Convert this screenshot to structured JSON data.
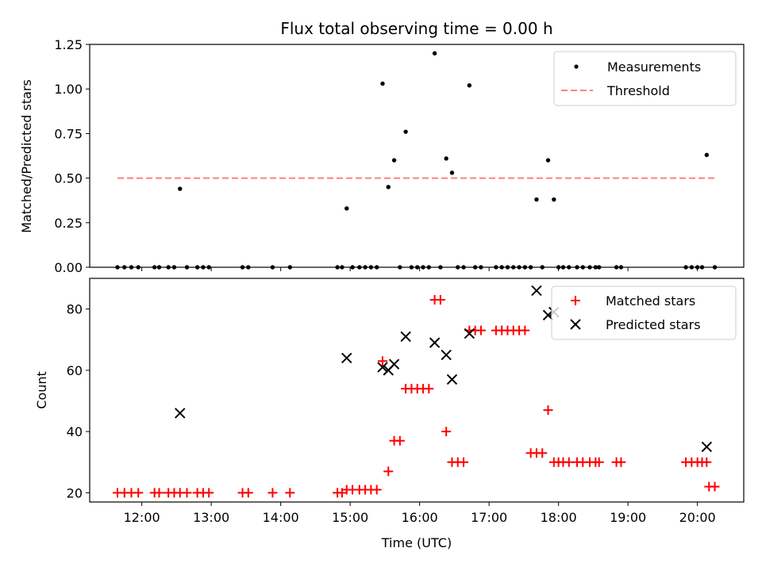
{
  "chart_data": [
    {
      "type": "scatter",
      "title": "Flux total observing time = 0.00 h",
      "xlabel": "",
      "ylabel": "Matched/Predicted stars",
      "xlim": [
        "11:15",
        "20:40"
      ],
      "ylim": [
        0,
        1.25
      ],
      "yticks": [
        0.0,
        0.25,
        0.5,
        0.75,
        1.0,
        1.25
      ],
      "ytick_labels": [
        "0.00",
        "0.25",
        "0.50",
        "0.75",
        "1.00",
        "1.25"
      ],
      "grid": false,
      "legend_position": "top-right",
      "series": [
        {
          "name": "Measurements",
          "marker": "dot",
          "color": "#000000",
          "points": [
            [
              "11:39",
              0
            ],
            [
              "11:45",
              0
            ],
            [
              "11:51",
              0
            ],
            [
              "11:57",
              0
            ],
            [
              "12:11",
              0
            ],
            [
              "12:15",
              0
            ],
            [
              "12:23",
              0
            ],
            [
              "12:28",
              0
            ],
            [
              "12:33",
              0.44
            ],
            [
              "12:39",
              0
            ],
            [
              "12:48",
              0
            ],
            [
              "12:53",
              0
            ],
            [
              "12:58",
              0
            ],
            [
              "13:27",
              0
            ],
            [
              "13:32",
              0
            ],
            [
              "13:53",
              0
            ],
            [
              "14:08",
              0
            ],
            [
              "14:49",
              0
            ],
            [
              "14:53",
              0
            ],
            [
              "14:57",
              0.33
            ],
            [
              "15:02",
              0
            ],
            [
              "15:08",
              0
            ],
            [
              "15:13",
              0
            ],
            [
              "15:18",
              0
            ],
            [
              "15:23",
              0
            ],
            [
              "15:28",
              1.03
            ],
            [
              "15:33",
              0.45
            ],
            [
              "15:38",
              0.6
            ],
            [
              "15:43",
              0
            ],
            [
              "15:48",
              0.76
            ],
            [
              "15:53",
              0
            ],
            [
              "15:58",
              0
            ],
            [
              "16:03",
              0
            ],
            [
              "16:08",
              0
            ],
            [
              "16:13",
              1.2
            ],
            [
              "16:18",
              0
            ],
            [
              "16:23",
              0.61
            ],
            [
              "16:28",
              0.53
            ],
            [
              "16:33",
              0
            ],
            [
              "16:38",
              0
            ],
            [
              "16:43",
              1.02
            ],
            [
              "16:48",
              0
            ],
            [
              "16:53",
              0
            ],
            [
              "17:06",
              0
            ],
            [
              "17:11",
              0
            ],
            [
              "17:16",
              0
            ],
            [
              "17:21",
              0
            ],
            [
              "17:26",
              0
            ],
            [
              "17:31",
              0
            ],
            [
              "17:36",
              0
            ],
            [
              "17:41",
              0.38
            ],
            [
              "17:46",
              0
            ],
            [
              "17:51",
              0.6
            ],
            [
              "17:56",
              0.38
            ],
            [
              "18:00",
              0
            ],
            [
              "18:04",
              0
            ],
            [
              "18:09",
              0
            ],
            [
              "18:16",
              0
            ],
            [
              "18:21",
              0
            ],
            [
              "18:27",
              0
            ],
            [
              "18:32",
              0
            ],
            [
              "18:35",
              0
            ],
            [
              "18:50",
              0
            ],
            [
              "18:54",
              0
            ],
            [
              "19:50",
              0
            ],
            [
              "19:55",
              0
            ],
            [
              "20:00",
              0
            ],
            [
              "20:04",
              0
            ],
            [
              "20:08",
              0.63
            ],
            [
              "20:15",
              0
            ]
          ]
        },
        {
          "name": "Threshold",
          "marker": "dashed-line",
          "color": "#ff8080",
          "points": [
            [
              "11:39",
              0.5
            ],
            [
              "20:15",
              0.5
            ]
          ]
        }
      ]
    },
    {
      "type": "scatter",
      "title": "",
      "xlabel": "Time (UTC)",
      "ylabel": "Count",
      "xlim": [
        "11:15",
        "20:40"
      ],
      "ylim": [
        17,
        90
      ],
      "yticks": [
        20,
        40,
        60,
        80
      ],
      "ytick_labels": [
        "20",
        "40",
        "60",
        "80"
      ],
      "xticks": [
        "12:00",
        "13:00",
        "14:00",
        "15:00",
        "16:00",
        "17:00",
        "18:00",
        "19:00",
        "20:00"
      ],
      "xtick_labels": [
        "12:00",
        "13:00",
        "14:00",
        "15:00",
        "16:00",
        "17:00",
        "18:00",
        "19:00",
        "20:00"
      ],
      "grid": false,
      "legend_position": "top-right",
      "series": [
        {
          "name": "Matched stars",
          "marker": "plus",
          "color": "#ff0000",
          "points": [
            [
              "11:39",
              20
            ],
            [
              "11:45",
              20
            ],
            [
              "11:51",
              20
            ],
            [
              "11:57",
              20
            ],
            [
              "12:11",
              20
            ],
            [
              "12:15",
              20
            ],
            [
              "12:23",
              20
            ],
            [
              "12:28",
              20
            ],
            [
              "12:33",
              20
            ],
            [
              "12:39",
              20
            ],
            [
              "12:48",
              20
            ],
            [
              "12:53",
              20
            ],
            [
              "12:58",
              20
            ],
            [
              "13:27",
              20
            ],
            [
              "13:32",
              20
            ],
            [
              "13:53",
              20
            ],
            [
              "14:08",
              20
            ],
            [
              "14:49",
              20
            ],
            [
              "14:53",
              20
            ],
            [
              "14:57",
              21
            ],
            [
              "15:02",
              21
            ],
            [
              "15:08",
              21
            ],
            [
              "15:13",
              21
            ],
            [
              "15:18",
              21
            ],
            [
              "15:23",
              21
            ],
            [
              "15:28",
              63
            ],
            [
              "15:33",
              27
            ],
            [
              "15:38",
              37
            ],
            [
              "15:43",
              37
            ],
            [
              "15:48",
              54
            ],
            [
              "15:53",
              54
            ],
            [
              "15:58",
              54
            ],
            [
              "16:03",
              54
            ],
            [
              "16:08",
              54
            ],
            [
              "16:13",
              83
            ],
            [
              "16:18",
              83
            ],
            [
              "16:23",
              40
            ],
            [
              "16:28",
              30
            ],
            [
              "16:33",
              30
            ],
            [
              "16:38",
              30
            ],
            [
              "16:43",
              73
            ],
            [
              "16:48",
              73
            ],
            [
              "16:53",
              73
            ],
            [
              "17:06",
              73
            ],
            [
              "17:11",
              73
            ],
            [
              "17:16",
              73
            ],
            [
              "17:21",
              73
            ],
            [
              "17:26",
              73
            ],
            [
              "17:31",
              73
            ],
            [
              "17:36",
              33
            ],
            [
              "17:41",
              33
            ],
            [
              "17:46",
              33
            ],
            [
              "17:51",
              47
            ],
            [
              "17:56",
              30
            ],
            [
              "18:00",
              30
            ],
            [
              "18:04",
              30
            ],
            [
              "18:09",
              30
            ],
            [
              "18:16",
              30
            ],
            [
              "18:21",
              30
            ],
            [
              "18:27",
              30
            ],
            [
              "18:32",
              30
            ],
            [
              "18:35",
              30
            ],
            [
              "18:50",
              30
            ],
            [
              "18:54",
              30
            ],
            [
              "19:50",
              30
            ],
            [
              "19:55",
              30
            ],
            [
              "20:00",
              30
            ],
            [
              "20:04",
              30
            ],
            [
              "20:08",
              30
            ],
            [
              "20:10",
              22
            ],
            [
              "20:15",
              22
            ]
          ]
        },
        {
          "name": "Predicted stars",
          "marker": "x",
          "color": "#000000",
          "points": [
            [
              "12:33",
              46
            ],
            [
              "14:57",
              64
            ],
            [
              "15:28",
              61
            ],
            [
              "15:33",
              60
            ],
            [
              "15:38",
              62
            ],
            [
              "15:48",
              71
            ],
            [
              "16:13",
              69
            ],
            [
              "16:23",
              65
            ],
            [
              "16:28",
              57
            ],
            [
              "16:43",
              72
            ],
            [
              "17:41",
              86
            ],
            [
              "17:51",
              78
            ],
            [
              "17:56",
              79
            ],
            [
              "20:08",
              35
            ]
          ]
        }
      ]
    }
  ]
}
